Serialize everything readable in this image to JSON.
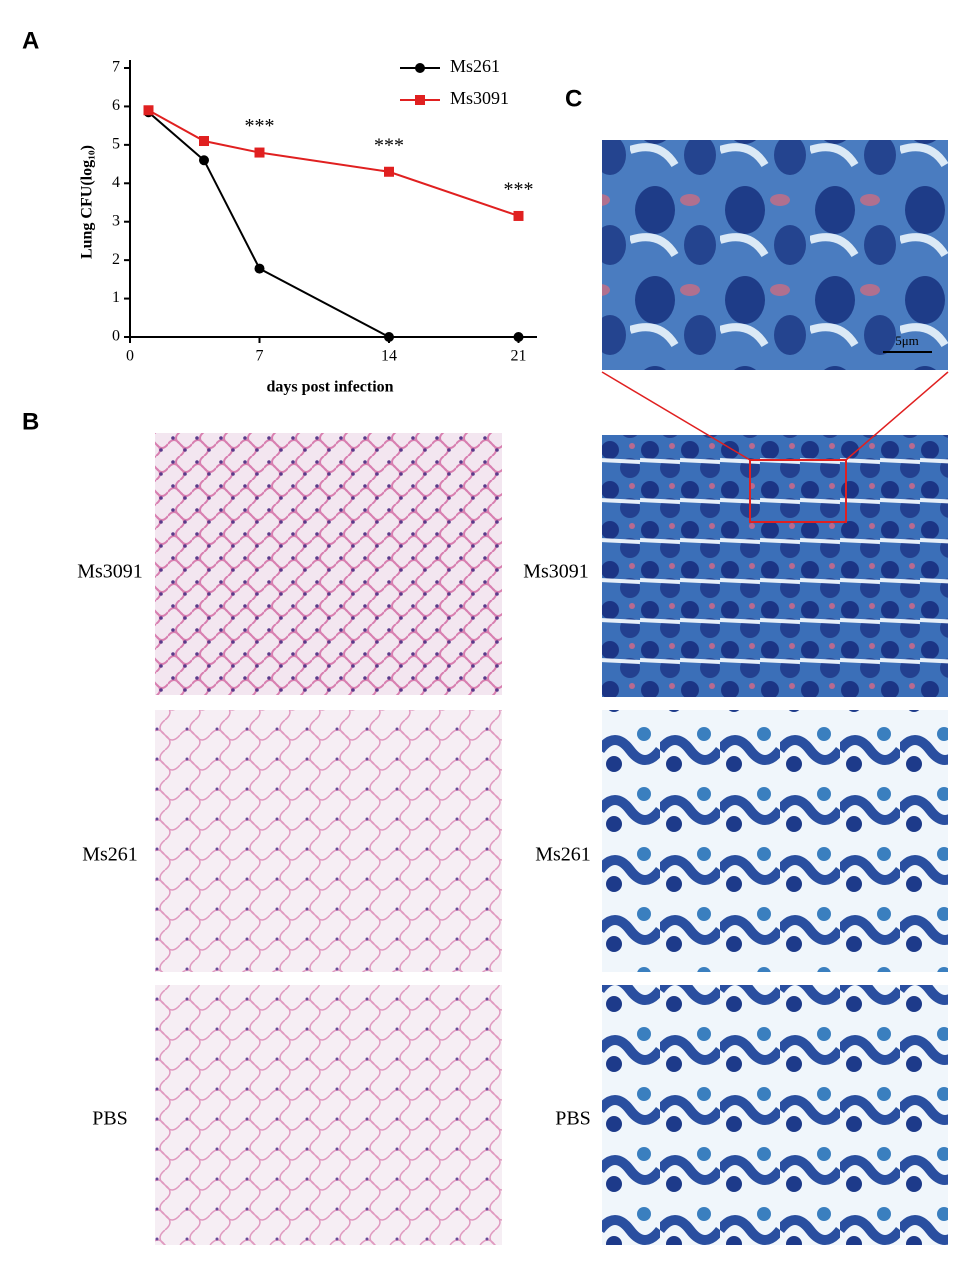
{
  "panel_labels": [
    "A",
    "B",
    "C"
  ],
  "chart_data": {
    "type": "line",
    "x": [
      1,
      4,
      7,
      14,
      21
    ],
    "series": [
      {
        "name": "Ms261",
        "color": "#000000",
        "marker": "circle",
        "values": [
          5.85,
          4.6,
          1.78,
          0,
          0
        ]
      },
      {
        "name": "Ms3091",
        "color": "#e02020",
        "marker": "square",
        "values": [
          5.9,
          5.1,
          4.8,
          4.3,
          3.15
        ]
      }
    ],
    "xlabel": "days post infection",
    "ylabel": "Lung CFU(log₁₀)",
    "xlim": [
      0,
      22
    ],
    "xticks": [
      0,
      7,
      14,
      21
    ],
    "ylim": [
      0,
      7
    ],
    "yticks": [
      0,
      1,
      2,
      3,
      4,
      5,
      6,
      7
    ],
    "legend": "upper right",
    "annotations": [
      {
        "text": "***",
        "x": 7
      },
      {
        "text": "***",
        "x": 14
      },
      {
        "text": "***",
        "x": 21
      }
    ]
  },
  "panel_b": {
    "rows": [
      "Ms3091",
      "Ms261",
      "PBS"
    ]
  },
  "panel_c": {
    "rows": [
      "Ms3091",
      "Ms261",
      "PBS"
    ],
    "scale_bar": "5μm"
  }
}
